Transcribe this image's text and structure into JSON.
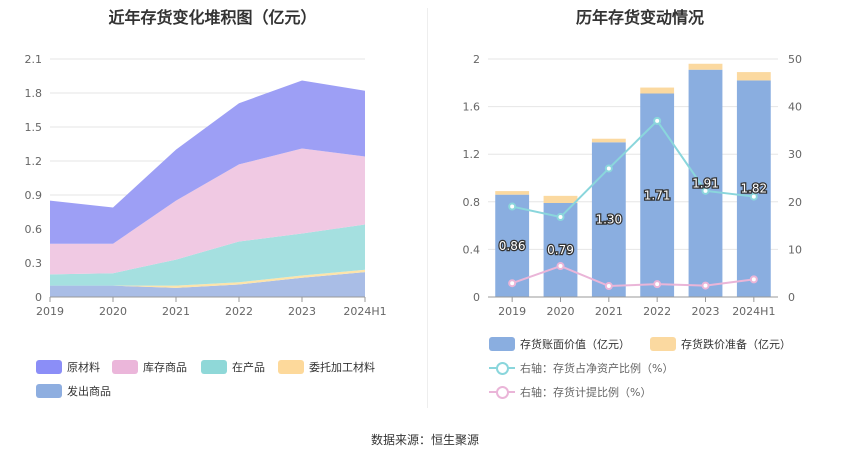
{
  "chart_data": [
    {
      "type": "area",
      "title": "近年存货变化堆积图（亿元）",
      "categories": [
        "2019",
        "2020",
        "2021",
        "2022",
        "2023",
        "2024H1"
      ],
      "ylim": [
        0,
        2.1
      ],
      "yticks": [
        "0",
        "0.3",
        "0.6",
        "0.9",
        "1.2",
        "1.5",
        "1.8",
        "2.1"
      ],
      "stacked": true,
      "series": [
        {
          "name": "发出商品",
          "color": "#a9bde6",
          "values": [
            0.1,
            0.1,
            0.08,
            0.11,
            0.17,
            0.22
          ]
        },
        {
          "name": "委托加工材料",
          "color": "#fde4aa",
          "values": [
            0.0,
            0.0,
            0.02,
            0.02,
            0.02,
            0.02
          ]
        },
        {
          "name": "在产品",
          "color": "#a5e0e0",
          "values": [
            0.1,
            0.11,
            0.23,
            0.36,
            0.37,
            0.4
          ]
        },
        {
          "name": "库存商品",
          "color": "#f0c9e3",
          "values": [
            0.27,
            0.26,
            0.52,
            0.68,
            0.75,
            0.6
          ]
        },
        {
          "name": "原材料",
          "color": "#9d9ff5",
          "values": [
            0.38,
            0.32,
            0.45,
            0.54,
            0.6,
            0.58
          ]
        }
      ],
      "legend": {
        "position": "bottom",
        "items": [
          {
            "name": "原材料",
            "color": "#8b8ef7"
          },
          {
            "name": "库存商品",
            "color": "#ebb6da"
          },
          {
            "name": "在产品",
            "color": "#8fd8d8"
          },
          {
            "name": "委托加工材料",
            "color": "#fdd99b"
          },
          {
            "name": "发出商品",
            "color": "#8eaee0"
          }
        ]
      }
    },
    {
      "type": "bar",
      "title": "历年存货变动情况",
      "categories": [
        "2019",
        "2020",
        "2021",
        "2022",
        "2023",
        "2024H1"
      ],
      "ylim": [
        0,
        2
      ],
      "yticks": [
        "0",
        "0.4",
        "0.8",
        "1.2",
        "1.6",
        "2"
      ],
      "y2lim": [
        0,
        50
      ],
      "y2ticks": [
        "0",
        "10",
        "20",
        "30",
        "40",
        "50"
      ],
      "series": [
        {
          "name": "存货账面价值（亿元）",
          "color": "#8aaee0",
          "values": [
            0.86,
            0.79,
            1.3,
            1.71,
            1.91,
            1.82
          ],
          "labels": [
            "0.86",
            "0.79",
            "1.30",
            "1.71",
            "1.91",
            "1.82"
          ]
        },
        {
          "name": "存货跌价准备（亿元）",
          "color": "#fbd9a0",
          "values": [
            0.03,
            0.06,
            0.03,
            0.05,
            0.05,
            0.07
          ]
        },
        {
          "name": "右轴：存货占净资产比例（%）",
          "color": "#8ad6dc",
          "axis": "right",
          "values": [
            19.0,
            16.8,
            27.0,
            37.0,
            22.3,
            21.1
          ]
        },
        {
          "name": "右轴：存货计提比例（%）",
          "color": "#eab5d8",
          "axis": "right",
          "values": [
            2.9,
            6.5,
            2.3,
            2.7,
            2.4,
            3.7
          ]
        }
      ]
    }
  ],
  "source": "数据来源：恒生聚源"
}
